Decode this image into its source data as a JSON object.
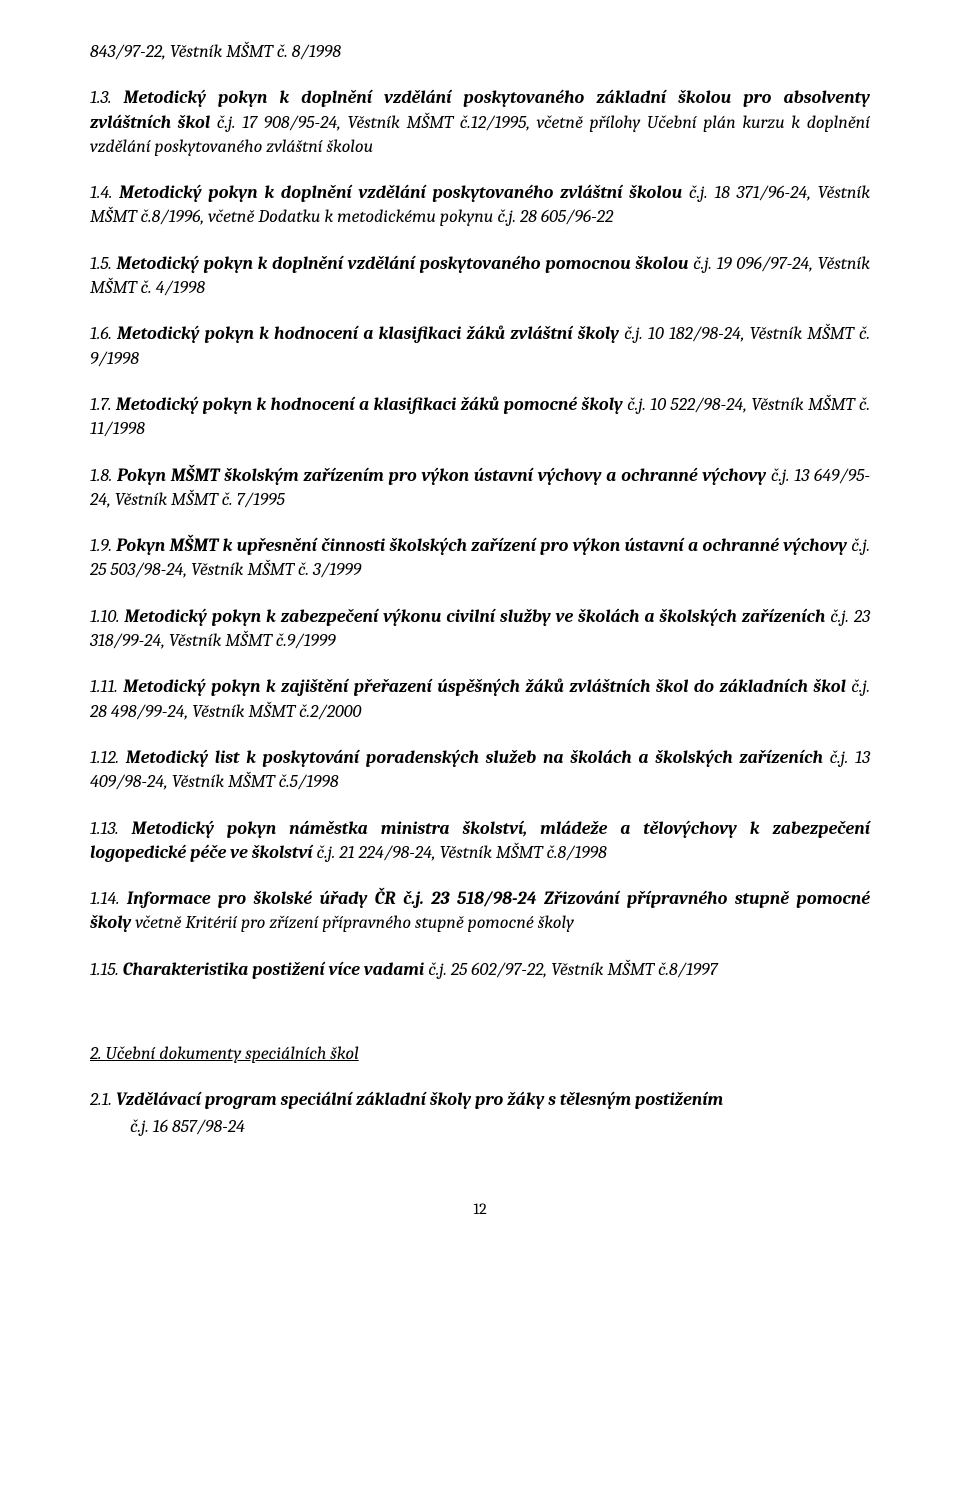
{
  "p0": [
    {
      "t": "843/97-22, Věstník MŠMT č. 8/1998",
      "c": "italic"
    }
  ],
  "p1": [
    {
      "t": "1.3. ",
      "c": "italic"
    },
    {
      "t": "Metodický pokyn k doplnění vzdělání poskytovaného základní školou pro absolventy zvláštních škol ",
      "c": "bolditalic"
    },
    {
      "t": "č.j. 17 908/95-24, Věstník MŠMT č.12/1995, včetně přílohy Učební plán kurzu k doplnění vzdělání poskytovaného zvláštní školou",
      "c": "italic"
    }
  ],
  "p2": [
    {
      "t": "1.4. ",
      "c": "italic"
    },
    {
      "t": "Metodický pokyn k doplnění vzdělání poskytovaného zvláštní školou ",
      "c": "bolditalic"
    },
    {
      "t": "č.j. 18 371/96-24, Věstník MŠMT č.8/1996, včetně Dodatku k metodickému pokynu č.j. 28 605/96-22",
      "c": "italic"
    }
  ],
  "p3": [
    {
      "t": "1.5. ",
      "c": "italic"
    },
    {
      "t": "Metodický pokyn k doplnění vzdělání poskytovaného pomocnou školou ",
      "c": "bolditalic"
    },
    {
      "t": "č.j. 19 096/97-24, Věstník MŠMT č. 4/1998",
      "c": "italic"
    }
  ],
  "p4": [
    {
      "t": "1.6. ",
      "c": "italic"
    },
    {
      "t": "Metodický pokyn k hodnocení a klasifikaci žáků zvláštní školy ",
      "c": "bolditalic"
    },
    {
      "t": " č.j. 10 182/98-24, Věstník MŠMT č. 9/1998",
      "c": "italic"
    }
  ],
  "p5": [
    {
      "t": "1.7. ",
      "c": "italic"
    },
    {
      "t": "Metodický pokyn k hodnocení a klasifikaci žáků pomocné školy ",
      "c": "bolditalic"
    },
    {
      "t": "č.j. 10 522/98-24, Věstník MŠMT č. 11/1998",
      "c": "italic"
    }
  ],
  "p6": [
    {
      "t": "1.8. ",
      "c": "italic"
    },
    {
      "t": "Pokyn MŠMT školským zařízením pro výkon ústavní výchovy a ochranné výchovy ",
      "c": "bolditalic"
    },
    {
      "t": "č.j. 13 649/95-24, Věstník MŠMT č. 7/1995",
      "c": "italic"
    }
  ],
  "p7": [
    {
      "t": "1.9. ",
      "c": "italic"
    },
    {
      "t": "Pokyn MŠMT k upřesnění činnosti školských zařízení pro výkon ústavní a ochranné    výchovy ",
      "c": "bolditalic"
    },
    {
      "t": "č.j. 25 503/98-24, Věstník MŠMT č. 3/1999",
      "c": "italic"
    }
  ],
  "p8": [
    {
      "t": "1.10. ",
      "c": "italic"
    },
    {
      "t": "Metodický pokyn k zabezpečení výkonu civilní služby ve školách a školských zařízeních ",
      "c": "bolditalic"
    },
    {
      "t": "č.j. 23 318/99-24, Věstník MŠMT č.9/1999",
      "c": "italic"
    }
  ],
  "p9": [
    {
      "t": "1.11. ",
      "c": "italic"
    },
    {
      "t": "Metodický pokyn k zajištění přeřazení úspěšných žáků zvláštních škol do základních škol ",
      "c": "bolditalic"
    },
    {
      "t": "č.j. 28 498/99-24, Věstník MŠMT č.2/2000",
      "c": "italic"
    }
  ],
  "p10": [
    {
      "t": "1.12. ",
      "c": "italic"
    },
    {
      "t": "Metodický list k poskytování poradenských služeb na školách a školských zařízeních ",
      "c": "bolditalic"
    },
    {
      "t": "č.j. 13 409/98-24, Věstník MŠMT č.5/1998",
      "c": "italic"
    }
  ],
  "p11": [
    {
      "t": "1.13. ",
      "c": "italic"
    },
    {
      "t": "Metodický pokyn náměstka ministra školství, mládeže a tělovýchovy k zabezpečení logopedické péče ve školství ",
      "c": "bolditalic"
    },
    {
      "t": "č.j. 21 224/98-24, Věstník MŠMT č.8/1998",
      "c": "italic"
    }
  ],
  "p12": [
    {
      "t": "1.14. ",
      "c": "italic"
    },
    {
      "t": "Informace pro školské úřady ČR č.j. 23 518/98-24 Zřizování přípravného stupně pomocné školy ",
      "c": "bolditalic"
    },
    {
      "t": "včetně Kritérií pro zřízení přípravného stupně pomocné školy",
      "c": "italic"
    }
  ],
  "p13": [
    {
      "t": "1.15. ",
      "c": "italic"
    },
    {
      "t": "Charakteristika postižení více vadami ",
      "c": "bolditalic"
    },
    {
      "t": "č.j. 25 602/97-22, Věstník MŠMT č.8/1997",
      "c": "italic"
    }
  ],
  "section2_title": "2. Učební dokumenty speciálních škol",
  "p14": [
    {
      "t": "2.1. ",
      "c": "italic"
    },
    {
      "t": "Vzdělávací program speciální základní školy pro žáky s tělesným postižením",
      "c": "bolditalic"
    }
  ],
  "p15": [
    {
      "t": "č.j. 16 857/98-24",
      "c": "italic"
    }
  ],
  "page_number": "12"
}
